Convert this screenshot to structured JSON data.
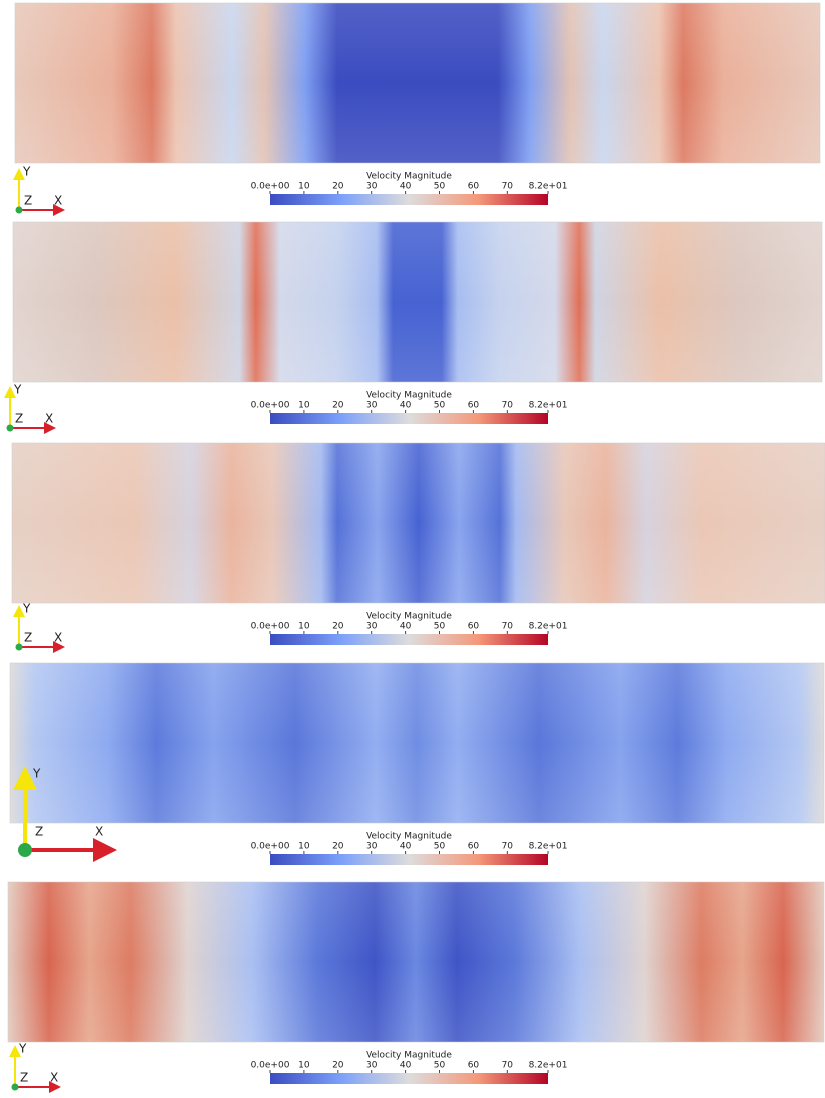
{
  "panels": [
    {
      "colorbar": {
        "title": "Velocity Magnitude",
        "ticks": [
          {
            "value": 0,
            "label": "0.0e+00"
          },
          10,
          20,
          30,
          40,
          50,
          60,
          70,
          {
            "value": 82,
            "label": "8.2e+01"
          }
        ]
      },
      "axes": {
        "x": "X",
        "y": "Y",
        "z": "Z"
      }
    },
    {
      "colorbar": {
        "title": "Velocity Magnitude",
        "ticks": [
          {
            "value": 0,
            "label": "0.0e+00"
          },
          10,
          20,
          30,
          40,
          50,
          60,
          70,
          {
            "value": 82,
            "label": "8.2e+01"
          }
        ]
      },
      "axes": {
        "x": "X",
        "y": "Y",
        "z": "Z"
      }
    },
    {
      "colorbar": {
        "title": "Velocity Magnitude",
        "ticks": [
          {
            "value": 0,
            "label": "0.0e+00"
          },
          10,
          20,
          30,
          40,
          50,
          60,
          70,
          {
            "value": 82,
            "label": "8.2e+01"
          }
        ]
      },
      "axes": {
        "x": "X",
        "y": "Y",
        "z": "Z"
      }
    },
    {
      "colorbar": {
        "title": "Velocity Magnitude",
        "ticks": [
          {
            "value": 0,
            "label": "0.0e+00"
          },
          10,
          20,
          30,
          40,
          50,
          60,
          70,
          {
            "value": 82,
            "label": "8.2e+01"
          }
        ]
      },
      "axes": {
        "x": "X",
        "y": "Y",
        "z": "Z"
      }
    },
    {
      "colorbar": {
        "title": "Velocity Magnitude",
        "ticks": [
          {
            "value": 0,
            "label": "0.0e+00"
          },
          10,
          20,
          30,
          40,
          50,
          60,
          70,
          {
            "value": 82,
            "label": "8.2e+01"
          }
        ]
      },
      "axes": {
        "x": "X",
        "y": "Y",
        "z": "Z"
      }
    }
  ]
}
